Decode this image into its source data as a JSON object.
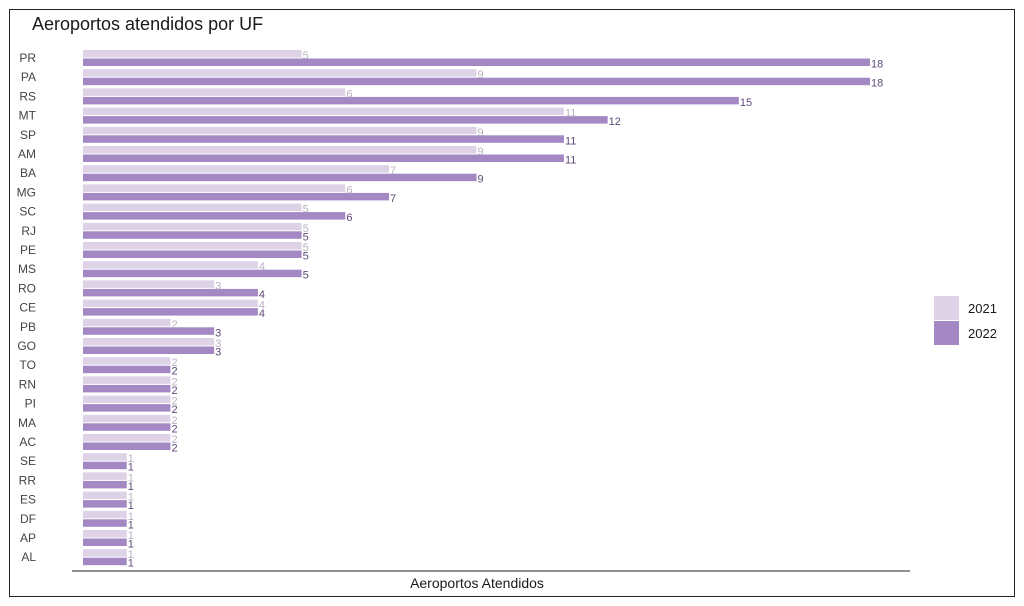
{
  "chart_data": {
    "type": "bar",
    "orientation": "horizontal",
    "title": "Aeroportos atendidos por UF",
    "xlabel": "Aeroportos Atendidos",
    "ylabel": "",
    "xlim": [
      0,
      19
    ],
    "grid": false,
    "legend_position": "right",
    "categories": [
      "PR",
      "PA",
      "RS",
      "MT",
      "SP",
      "AM",
      "BA",
      "MG",
      "SC",
      "RJ",
      "PE",
      "MS",
      "RO",
      "CE",
      "PB",
      "GO",
      "TO",
      "RN",
      "PI",
      "MA",
      "AC",
      "SE",
      "RR",
      "ES",
      "DF",
      "AP",
      "AL"
    ],
    "series": [
      {
        "name": "2021",
        "color": "#ddd2e6",
        "label_color": "#b8b0bf",
        "values": [
          5,
          9,
          6,
          11,
          9,
          9,
          7,
          6,
          5,
          5,
          5,
          4,
          3,
          4,
          2,
          3,
          2,
          2,
          2,
          2,
          2,
          1,
          1,
          1,
          1,
          1,
          1
        ]
      },
      {
        "name": "2022",
        "color": "#a388c4",
        "label_color": "#5e4a78",
        "values": [
          18,
          18,
          15,
          12,
          11,
          11,
          9,
          7,
          6,
          5,
          5,
          5,
          4,
          4,
          3,
          3,
          2,
          2,
          2,
          2,
          2,
          1,
          1,
          1,
          1,
          1,
          1
        ]
      }
    ]
  }
}
